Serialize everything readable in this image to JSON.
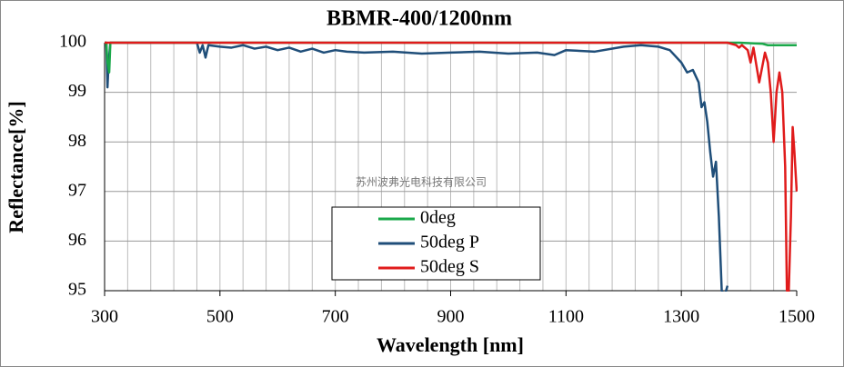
{
  "chart_data": {
    "type": "line",
    "title": "BBMR-400/1200nm",
    "x_label": "Wavelength [nm]",
    "y_label": "Reflectance[%]",
    "annotation": "苏州波弗光电科技有限公司",
    "xlim": [
      300,
      1500
    ],
    "xticks": [
      300,
      500,
      700,
      900,
      1100,
      1300,
      1500
    ],
    "x_gridlines": [
      340,
      380,
      420,
      460,
      500,
      540,
      580,
      620,
      660,
      700,
      740,
      780,
      820,
      860,
      900,
      940,
      980,
      1020,
      1060,
      1100,
      1140,
      1180,
      1220,
      1260,
      1300,
      1340,
      1380,
      1420,
      1460
    ],
    "ylim": [
      95,
      100
    ],
    "yticks": [
      95,
      96,
      97,
      98,
      99,
      100
    ],
    "grid": true,
    "series": [
      {
        "name": "0deg",
        "color": "#1aa84a",
        "x": [
          300,
          303,
          305,
          308,
          310,
          320,
          1400,
          1440,
          1450,
          1500
        ],
        "values": [
          100,
          100,
          99.6,
          99.4,
          100,
          100,
          100,
          99.98,
          99.95,
          99.95
        ]
      },
      {
        "name": "50deg P",
        "color": "#1f4e79",
        "x": [
          300,
          303,
          305,
          307,
          310,
          315,
          320,
          350,
          400,
          450,
          460,
          465,
          470,
          475,
          480,
          500,
          520,
          540,
          560,
          580,
          600,
          620,
          640,
          660,
          680,
          700,
          720,
          750,
          800,
          850,
          900,
          950,
          1000,
          1050,
          1080,
          1100,
          1150,
          1200,
          1230,
          1260,
          1280,
          1300,
          1310,
          1320,
          1330,
          1335,
          1340,
          1345,
          1350,
          1355,
          1360,
          1365,
          1370,
          1375,
          1380
        ],
        "values": [
          100,
          100,
          99.1,
          99.6,
          100,
          100,
          100,
          100,
          100,
          100,
          100,
          99.8,
          99.95,
          99.7,
          99.95,
          99.92,
          99.9,
          99.95,
          99.88,
          99.92,
          99.85,
          99.9,
          99.82,
          99.88,
          99.8,
          99.85,
          99.82,
          99.8,
          99.82,
          99.78,
          99.8,
          99.82,
          99.78,
          99.8,
          99.75,
          99.85,
          99.82,
          99.92,
          99.95,
          99.92,
          99.85,
          99.6,
          99.4,
          99.45,
          99.2,
          98.7,
          98.8,
          98.4,
          97.8,
          97.3,
          97.6,
          96.5,
          95.0,
          94.9,
          95.1
        ]
      },
      {
        "name": "50deg S",
        "color": "#e01b1b",
        "x": [
          300,
          1380,
          1395,
          1400,
          1405,
          1415,
          1420,
          1425,
          1435,
          1440,
          1445,
          1450,
          1455,
          1460,
          1465,
          1470,
          1475,
          1480,
          1483,
          1486,
          1490,
          1493,
          1496,
          1500
        ],
        "values": [
          100,
          100,
          99.95,
          99.9,
          99.95,
          99.85,
          99.6,
          99.9,
          99.2,
          99.5,
          99.8,
          99.6,
          99.0,
          98.0,
          99.0,
          99.4,
          99.0,
          97.5,
          95.0,
          94.9,
          96.5,
          98.3,
          97.8,
          97.0
        ]
      }
    ]
  }
}
